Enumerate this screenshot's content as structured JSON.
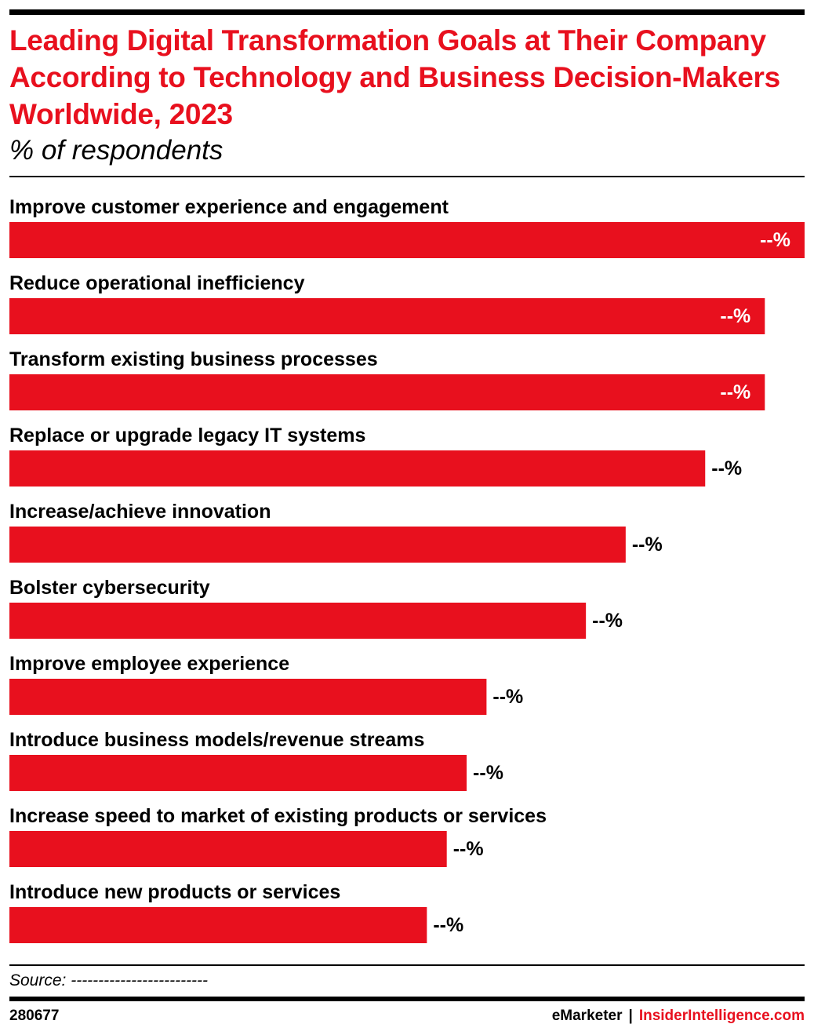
{
  "title": "Leading Digital Transformation Goals at Their Company According to Technology and Business Decision-Makers Worldwide, 2023",
  "subtitle": "% of respondents",
  "source": "Source: -------------------------",
  "chart_id": "280677",
  "brand": {
    "emarketer": "eMarketer",
    "separator": "|",
    "insider": "InsiderIntelligence.com"
  },
  "colors": {
    "bar": "#e8101e",
    "title": "#e8101e",
    "label_on_bar": "#ffffff",
    "label_off_bar": "#000000"
  },
  "chart_data": {
    "type": "bar",
    "orientation": "horizontal",
    "categories": [
      "Improve customer experience and engagement",
      "Reduce operational inefficiency",
      "Transform existing business processes",
      "Replace or upgrade legacy IT systems",
      "Increase/achieve innovation",
      "Bolster cybersecurity",
      "Improve employee experience",
      "Introduce business models/revenue streams",
      "Increase speed to market of existing products or services",
      "Introduce new products or services"
    ],
    "values": [
      100,
      95,
      95,
      87.5,
      77.5,
      72.5,
      60,
      57.5,
      55,
      52.5
    ],
    "value_labels": [
      "--%",
      "--%",
      "--%",
      "--%",
      "--%",
      "--%",
      "--%",
      "--%",
      "--%",
      "--%"
    ],
    "xlim": [
      0,
      100
    ],
    "grid": false,
    "legend": "none"
  }
}
